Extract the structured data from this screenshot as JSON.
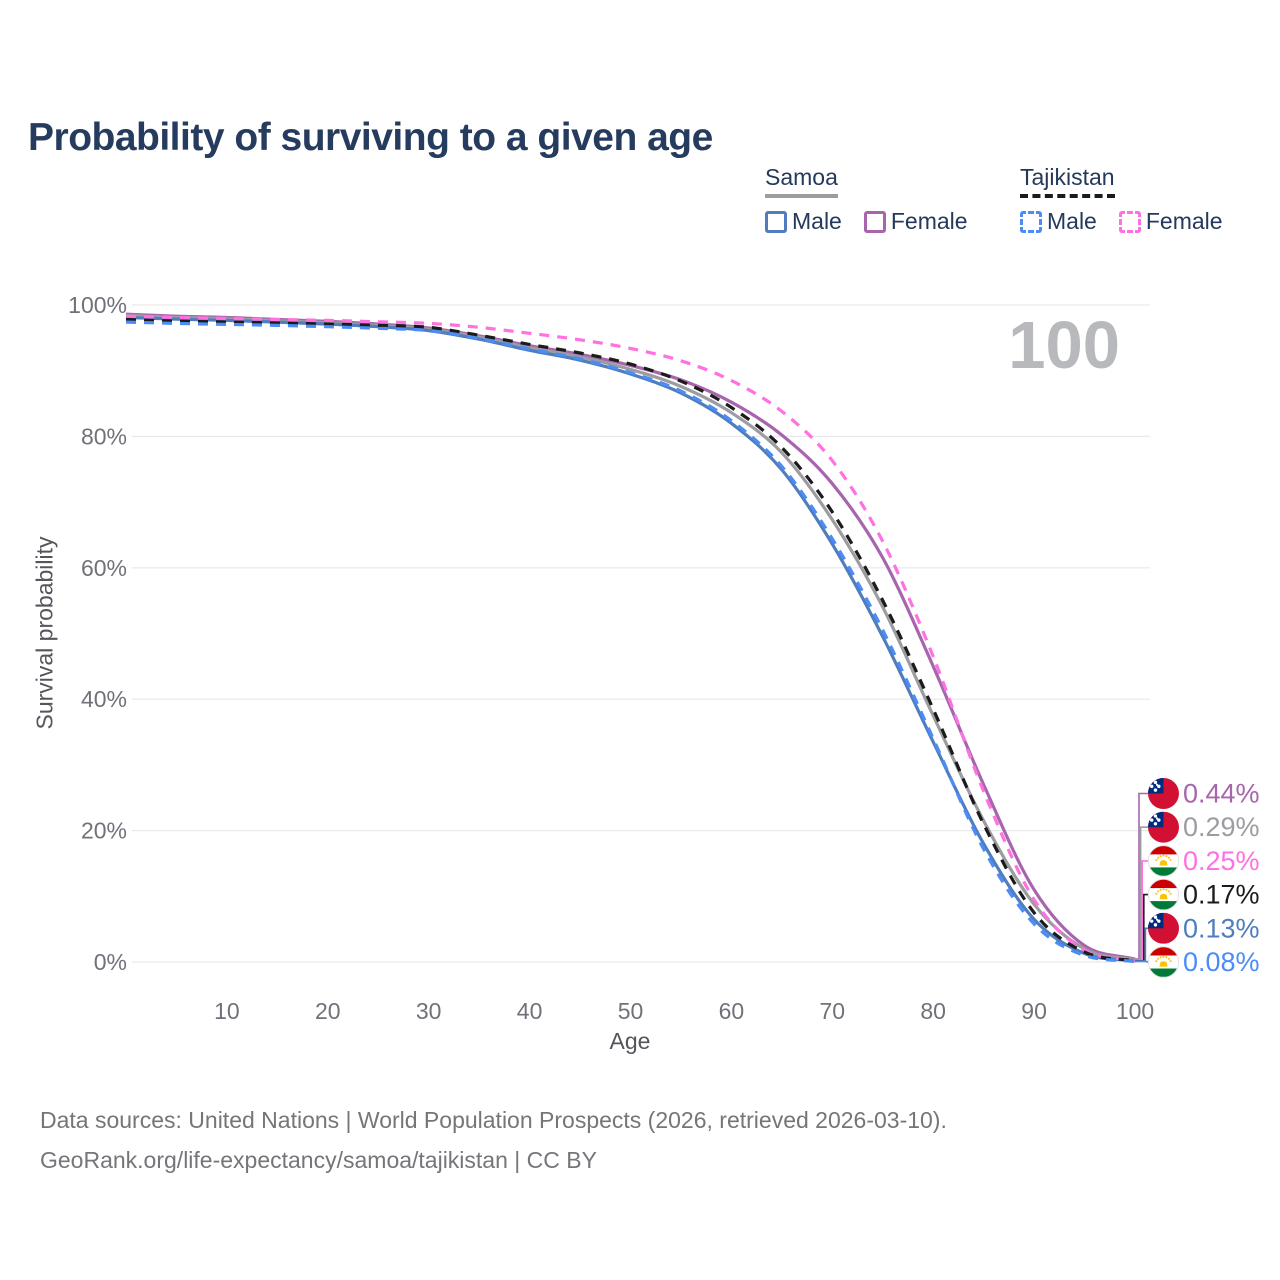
{
  "header": {
    "title": "Probability of surviving to a given age"
  },
  "legend": {
    "groups": [
      {
        "id": "samoa",
        "label": "Samoa",
        "underline": "solid",
        "underline_color": "#9c9ca1",
        "items": [
          {
            "label": "Male",
            "color": "#4f7dbd",
            "dashed": false
          },
          {
            "label": "Female",
            "color": "#a765ad",
            "dashed": false
          }
        ]
      },
      {
        "id": "tajikistan",
        "label": "Tajikistan",
        "underline": "dashed",
        "underline_color": "#1b1b1b",
        "items": [
          {
            "label": "Male",
            "color": "#4b8cf7",
            "dashed": true
          },
          {
            "label": "Female",
            "color": "#ff70e0",
            "dashed": true
          }
        ]
      }
    ]
  },
  "chart_data": {
    "type": "line",
    "title": "Probability of surviving to a given age",
    "xlabel": "Age",
    "ylabel": "Survival probability",
    "xlim": [
      0,
      100
    ],
    "ylim": [
      0,
      100
    ],
    "grid": "horizontal",
    "legend_position": "top-right",
    "age_indicator": "100",
    "x_ticks": [
      10,
      20,
      30,
      40,
      50,
      60,
      70,
      80,
      90,
      100
    ],
    "y_ticks": [
      {
        "value": 0,
        "label": "0%"
      },
      {
        "value": 20,
        "label": "20%"
      },
      {
        "value": 40,
        "label": "40%"
      },
      {
        "value": 60,
        "label": "60%"
      },
      {
        "value": 80,
        "label": "80%"
      },
      {
        "value": 100,
        "label": "100%"
      }
    ],
    "ages": [
      0,
      5,
      10,
      15,
      20,
      25,
      30,
      35,
      40,
      45,
      50,
      55,
      60,
      65,
      70,
      75,
      80,
      85,
      90,
      95,
      100
    ],
    "series": [
      {
        "id": "samoa-female",
        "country": "Samoa",
        "sex": "Female",
        "flag": "ws",
        "color": "#a765ad",
        "dash": false,
        "end_label": "0.44%",
        "values": [
          98.6,
          98.3,
          98.1,
          97.8,
          97.5,
          97.1,
          96.5,
          95.3,
          93.8,
          92.5,
          90.8,
          88.6,
          85.2,
          80.2,
          72.8,
          61.5,
          45.0,
          27.0,
          11.0,
          2.5,
          0.44
        ]
      },
      {
        "id": "samoa-total",
        "country": "Samoa",
        "sex": "All",
        "flag": "ws",
        "color": "#9c9ca1",
        "dash": false,
        "end_label": "0.29%",
        "values": [
          98.4,
          98.1,
          97.9,
          97.6,
          97.3,
          96.9,
          96.3,
          95.1,
          93.5,
          92.1,
          90.2,
          87.6,
          83.6,
          77.5,
          67.3,
          54.0,
          37.5,
          21.5,
          8.8,
          2.0,
          0.29
        ]
      },
      {
        "id": "tajikistan-female",
        "country": "Tajikistan",
        "sex": "Female",
        "flag": "tj",
        "color": "#ff70e0",
        "dash": true,
        "end_label": "0.25%",
        "values": [
          98.3,
          98.1,
          97.95,
          97.8,
          97.65,
          97.45,
          97.2,
          96.6,
          95.7,
          94.7,
          93.4,
          91.5,
          88.5,
          83.8,
          76.3,
          64.0,
          46.5,
          26.0,
          9.5,
          1.8,
          0.25
        ]
      },
      {
        "id": "tajikistan-total",
        "country": "Tajikistan",
        "sex": "All",
        "flag": "tj",
        "color": "#1b1b1b",
        "dash": true,
        "end_label": "0.17%",
        "values": [
          97.8,
          97.55,
          97.4,
          97.25,
          97.1,
          96.9,
          96.6,
          95.4,
          94.0,
          92.7,
          91.0,
          88.4,
          84.4,
          78.3,
          68.5,
          55.0,
          38.5,
          21.0,
          7.5,
          1.5,
          0.17
        ]
      },
      {
        "id": "samoa-male",
        "country": "Samoa",
        "sex": "Male",
        "flag": "ws",
        "color": "#4f7dbd",
        "dash": false,
        "end_label": "0.13%",
        "values": [
          98.1,
          97.85,
          97.65,
          97.4,
          97.1,
          96.7,
          96.1,
          94.8,
          93.1,
          91.6,
          89.5,
          86.6,
          82.0,
          74.9,
          63.6,
          49.5,
          33.5,
          18.0,
          6.5,
          1.3,
          0.13
        ]
      },
      {
        "id": "tajikistan-male",
        "country": "Tajikistan",
        "sex": "Male",
        "flag": "tj",
        "color": "#4b8cf7",
        "dash": true,
        "end_label": "0.08%",
        "values": [
          97.4,
          97.2,
          97.05,
          96.9,
          96.7,
          96.45,
          96.1,
          94.9,
          93.3,
          91.8,
          89.7,
          86.9,
          82.4,
          75.4,
          64.4,
          50.5,
          34.0,
          17.2,
          5.8,
          1.0,
          0.08
        ]
      }
    ],
    "end_labels_order": [
      "samoa-female",
      "samoa-total",
      "tajikistan-female",
      "tajikistan-total",
      "samoa-male",
      "tajikistan-male"
    ]
  },
  "footer": {
    "line1": "Data sources: United Nations | World Population Prospects (2026, retrieved 2026-03-10).",
    "line2": "GeoRank.org/life-expectancy/samoa/tajikistan | CC BY"
  }
}
